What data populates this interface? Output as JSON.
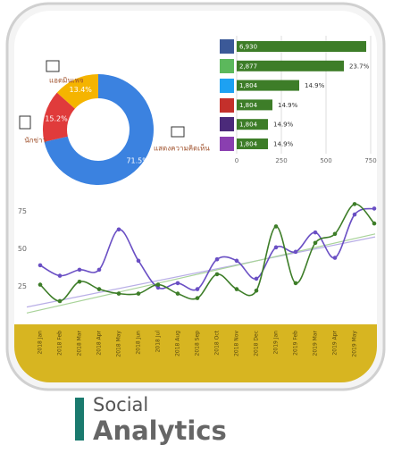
{
  "chart_data": [
    {
      "type": "pie",
      "donut": true,
      "categories": [
        "แสดงความคิดเห็น",
        "นักข่าว",
        "แอดมินเพจ"
      ],
      "values": [
        71.5,
        15.2,
        13.4
      ],
      "value_labels": [
        "71.5%",
        "15.2%",
        "13.4%"
      ],
      "colors": [
        "#3b82e0",
        "#e03b3b",
        "#f5b400"
      ]
    },
    {
      "type": "bar",
      "orientation": "horizontal",
      "categories": [
        null,
        null,
        null,
        null,
        null,
        null
      ],
      "values": [
        725,
        600,
        350,
        200,
        175,
        175
      ],
      "counts": [
        "6,930",
        "2,877",
        "1,804",
        "1,804",
        "1,804",
        "1,804"
      ],
      "shares": [
        null,
        "23.7%",
        "14.9%",
        "14.9%",
        "14.9%",
        "14.9%"
      ],
      "color": "#3d7d28",
      "xlim": [
        0,
        750
      ],
      "xticks": [
        0,
        250,
        500,
        750
      ],
      "grid": true
    },
    {
      "type": "line",
      "categories": [
        "2018 Jan",
        "2018 Feb",
        "2018 Mar",
        "2018 Apr",
        "2018 May",
        "2018 Jun",
        "2018 Jul",
        "2018 Aug",
        "2018 Sep",
        "2018 Oct",
        "2018 Nov",
        "2018 Dec",
        "2019 Jan",
        "2019 Feb",
        "2019 Mar",
        "2019 Apr",
        "2019 May",
        null
      ],
      "series": [
        {
          "color": "#6a4fc4",
          "values": [
            39,
            32,
            36,
            36,
            63,
            42,
            24,
            27,
            23,
            43,
            42,
            30,
            51,
            48,
            61,
            44,
            73,
            77
          ]
        },
        {
          "color": "#3d7d28",
          "values": [
            26,
            15,
            28,
            23,
            20,
            20,
            26,
            20,
            17,
            33,
            23,
            22,
            65,
            27,
            54,
            60,
            80,
            67
          ]
        }
      ],
      "trendlines": [
        {
          "color": "#b8aee6",
          "start": 11,
          "end": 58
        },
        {
          "color": "#a9d39a",
          "start": 7,
          "end": 60
        }
      ],
      "ylim": [
        6,
        91
      ],
      "yticks": [
        25,
        50,
        75
      ]
    }
  ],
  "caption": {
    "line1": "Social",
    "line2": "Analytics"
  }
}
